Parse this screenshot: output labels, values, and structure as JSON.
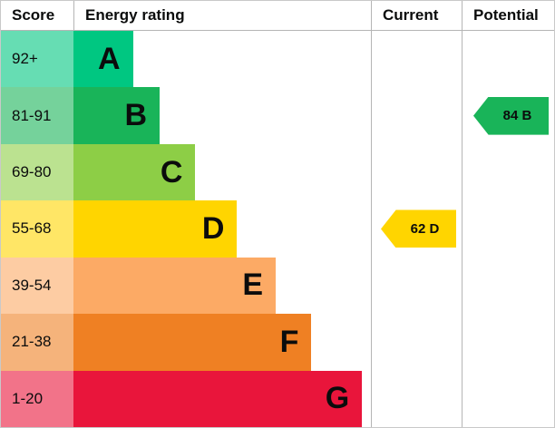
{
  "header": {
    "score": "Score",
    "energy_rating": "Energy rating",
    "current": "Current",
    "potential": "Potential"
  },
  "bands": [
    {
      "score": "92+",
      "letter": "A",
      "color": "#00c781",
      "score_color": "#66ddb3",
      "bar_width_pct": 20
    },
    {
      "score": "81-91",
      "letter": "B",
      "color": "#19b459",
      "score_color": "#75d29b",
      "bar_width_pct": 29
    },
    {
      "score": "69-80",
      "letter": "C",
      "color": "#8dce46",
      "score_color": "#bbe290",
      "bar_width_pct": 41
    },
    {
      "score": "55-68",
      "letter": "D",
      "color": "#ffd500",
      "score_color": "#ffe666",
      "bar_width_pct": 55
    },
    {
      "score": "39-54",
      "letter": "E",
      "color": "#fcaa65",
      "score_color": "#fdcca3",
      "bar_width_pct": 68
    },
    {
      "score": "21-38",
      "letter": "F",
      "color": "#ef8023",
      "score_color": "#f5b37b",
      "bar_width_pct": 80
    },
    {
      "score": "1-20",
      "letter": "G",
      "color": "#e9153b",
      "score_color": "#f27389",
      "bar_width_pct": 97
    }
  ],
  "current": {
    "label": "62 D",
    "value": 62,
    "band": "D",
    "color": "#ffd500"
  },
  "potential": {
    "label": "84 B",
    "value": 84,
    "band": "B",
    "color": "#19b459"
  },
  "chart_data": {
    "type": "bar",
    "title": "Energy rating",
    "categories": [
      "A",
      "B",
      "C",
      "D",
      "E",
      "F",
      "G"
    ],
    "score_ranges": [
      "92+",
      "81-91",
      "69-80",
      "55-68",
      "39-54",
      "21-38",
      "1-20"
    ],
    "band_colors": [
      "#00c781",
      "#19b459",
      "#8dce46",
      "#ffd500",
      "#fcaa65",
      "#ef8023",
      "#e9153b"
    ],
    "bar_widths_pct": [
      20,
      29,
      41,
      55,
      68,
      80,
      97
    ],
    "current": {
      "value": 62,
      "band": "D"
    },
    "potential": {
      "value": 84,
      "band": "B"
    },
    "legend_position": "none",
    "grid": false
  }
}
